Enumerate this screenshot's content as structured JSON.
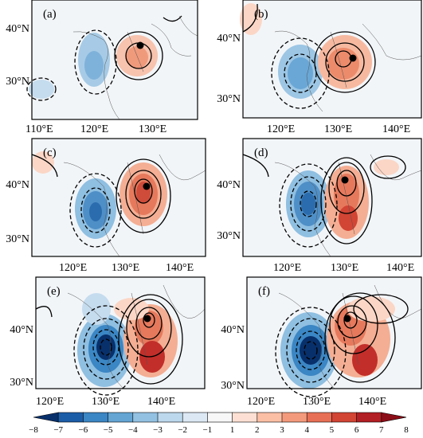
{
  "panels": [
    {
      "label": "(a)",
      "lat_labels": [
        "40°N",
        "30°N"
      ],
      "lon_labels": [
        "110°E",
        "120°E",
        "130°E"
      ]
    },
    {
      "label": "(b)",
      "lat_labels": [
        "40°N",
        "30°N"
      ],
      "lon_labels": [
        "120°E",
        "130°E",
        "140°E"
      ]
    },
    {
      "label": "(c)",
      "lat_labels": [
        "40°N",
        "30°N"
      ],
      "lon_labels": [
        "120°E",
        "130°E",
        "140°E"
      ]
    },
    {
      "label": "(d)",
      "lat_labels": [
        "40°N",
        "30°N"
      ],
      "lon_labels": [
        "120°E",
        "130°E",
        "140°E"
      ]
    },
    {
      "label": "(e)",
      "lat_labels": [
        "40°N",
        "30°N"
      ],
      "lon_labels": [
        "120°E",
        "130°E",
        "140°E"
      ]
    },
    {
      "label": "(f)",
      "lat_labels": [
        "40°N",
        "30°N"
      ],
      "lon_labels": [
        "120°E",
        "130°E",
        "140°E"
      ]
    }
  ],
  "colorbar": {
    "ticks": [
      "−8",
      "−7",
      "−6",
      "−5",
      "−4",
      "−3",
      "−2",
      "−1",
      "1",
      "2",
      "3",
      "4",
      "5",
      "6",
      "7",
      "8"
    ],
    "colors": [
      "#08306b",
      "#1c5da8",
      "#3b86c4",
      "#64a5d3",
      "#93c1e2",
      "#bcd8ec",
      "#dce9f4",
      "#f7f7f7",
      "#fde0d3",
      "#fbbfa5",
      "#f49a7c",
      "#e76f55",
      "#d24434",
      "#b21f24",
      "#8b0d17"
    ]
  }
}
